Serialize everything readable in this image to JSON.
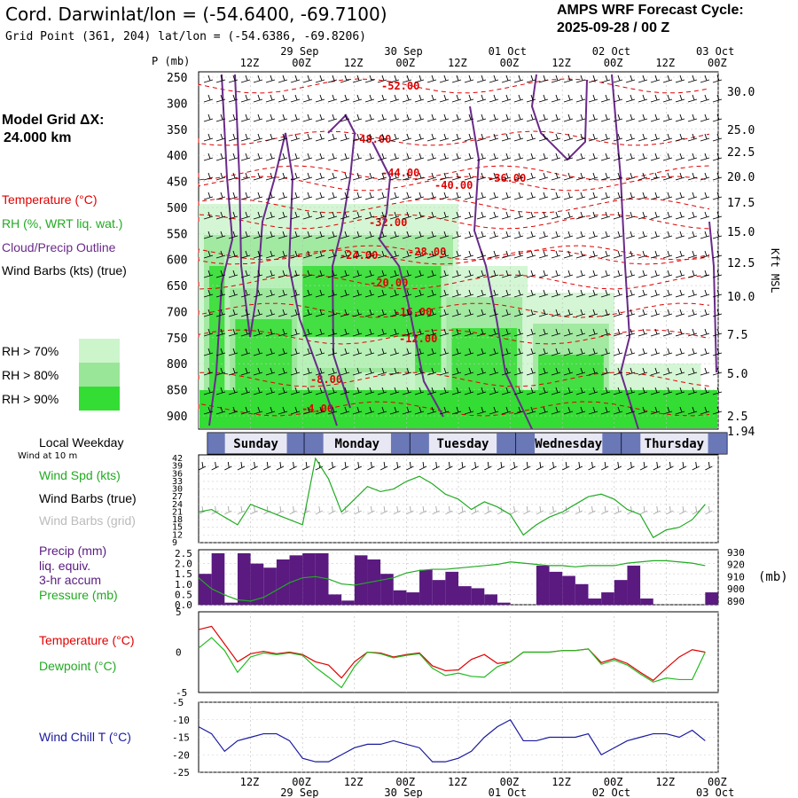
{
  "header": {
    "station": "Cord. Darwin:",
    "latlon_label": "lat/lon = (-54.6400, -69.7100)",
    "grid_point": "Grid Point (361, 204) lat/lon = (-54.6386, -69.8206)",
    "cycle_title": "AMPS WRF Forecast Cycle:",
    "cycle_value": "2025-09-28 / 00  Z"
  },
  "left_labels": {
    "model_grid": "Model Grid ΔX:",
    "model_grid_value": "24.000 km",
    "temperature": "Temperature (°C)",
    "rh": "RH (%, WRT liq. wat.)",
    "cloud": "Cloud/Precip Outline",
    "wind_barbs": "Wind Barbs (kts) (true)",
    "rh70": "RH > 70%",
    "rh80": "RH > 80%",
    "rh90": "RH > 90%",
    "local_weekday": "Local Weekday",
    "wind_10m": "Wind at 10 m",
    "wind_spd": "Wind Spd (kts)",
    "wind_barbs_true": "Wind Barbs (true)",
    "wind_barbs_grid": "Wind Barbs (grid)",
    "precip": "Precip (mm)",
    "precip2": "liq. equiv.",
    "precip3": "3-hr accum",
    "pressure": "Pressure (mb)",
    "temperature2": "Temperature (°C)",
    "dewpoint": "Dewpoint (°C)",
    "wind_chill": "Wind Chill T (°C)"
  },
  "axis_labels": {
    "p_mb": "P (mb)",
    "kft_msl": "Kft MSL",
    "mb": "(mb)"
  },
  "colors": {
    "rh70": "#ccf5cc",
    "rh80": "#99e699",
    "rh90": "#33dd33",
    "temperature": "#e00000",
    "dewpoint": "#22bb22",
    "cloud": "#6a2a8a",
    "precip": "#5a1a80",
    "pressure": "#22aa22",
    "wind_speed": "#22aa22",
    "wind_chill": "#1a1aa0",
    "weekday_bar": "#4a5ba8"
  },
  "chart_data": [
    {
      "type": "line",
      "title": "Time axis",
      "top_tick_labels": [
        "12Z",
        "00Z",
        "12Z",
        "00Z",
        "12Z",
        "00Z",
        "12Z",
        "00Z",
        "12Z",
        "00Z"
      ],
      "top_date_labels": [
        "29 Sep",
        "30 Sep",
        "01 Oct",
        "02 Oct",
        "03 Oct"
      ],
      "bottom_tick_labels": [
        "12Z",
        "00Z",
        "12Z",
        "00Z",
        "12Z",
        "00Z",
        "12Z",
        "00Z",
        "12Z",
        "00Z"
      ],
      "bottom_date_labels": [
        "29 Sep",
        "30 Sep",
        "01 Oct",
        "02 Oct",
        "03 Oct"
      ],
      "weekdays": [
        "Sunday",
        "Monday",
        "Tuesday",
        "Wednesday",
        "Thursday"
      ]
    },
    {
      "type": "heatmap",
      "title": "Cross-section: temperature, RH, cloud outline, wind barbs",
      "ylabel": "P (mb)",
      "pressure_ticks": [
        "250",
        "300",
        "350",
        "400",
        "450",
        "500",
        "550",
        "600",
        "650",
        "700",
        "750",
        "800",
        "850",
        "900"
      ],
      "height_ticks": [
        "30.0",
        "25.0",
        "22.5",
        "20.0",
        "17.5",
        "15.0",
        "12.5",
        "10.0",
        "7.5",
        "5.0",
        "2.5",
        "1.94"
      ],
      "temperature_labels": [
        "-52.00",
        "-48.00",
        "-44.00",
        "-40.00",
        "-36.00",
        "-32.00",
        "-28.00",
        "-24.00",
        "-20.00",
        "-16.00",
        "-12.00",
        "-8.00",
        "-4.00"
      ]
    },
    {
      "type": "line",
      "title": "Wind speed 10 m (kts)",
      "ylabel": "Wind Spd (kts)",
      "y_ticks": [
        "42",
        "39",
        "36",
        "33",
        "30",
        "27",
        "24",
        "21",
        "18",
        "15",
        "12",
        "9"
      ],
      "ylim": [
        9,
        42
      ],
      "x_hours": [
        0,
        3,
        6,
        9,
        12,
        15,
        18,
        21,
        24,
        27,
        30,
        33,
        36,
        39,
        42,
        45,
        48,
        51,
        54,
        57,
        60,
        63,
        66,
        69,
        72,
        75,
        78,
        81,
        84,
        87,
        90,
        93,
        96,
        99,
        102,
        105,
        108,
        111,
        114,
        117
      ],
      "values": [
        21,
        22,
        19,
        16,
        24,
        22,
        20,
        18,
        16,
        42,
        34,
        21,
        26,
        31,
        29,
        30,
        33,
        35,
        32,
        28,
        26,
        22,
        25,
        23,
        20,
        12,
        16,
        19,
        21,
        24,
        27,
        28,
        26,
        22,
        20,
        11,
        14,
        15,
        18,
        24
      ]
    },
    {
      "type": "bar",
      "title": "Precip (mm) 3-hr accum + Pressure (mb)",
      "ylabel": "Precip (mm)",
      "y_ticks": [
        "2.5",
        "2.0",
        "1.5",
        "1.0",
        "0.5",
        "0.0"
      ],
      "ylim": [
        0,
        2.5
      ],
      "pressure_ticks": [
        "930",
        "920",
        "910",
        "900",
        "890"
      ],
      "pressure_ylim": [
        887,
        932
      ],
      "x_hours": [
        0,
        3,
        6,
        9,
        12,
        15,
        18,
        21,
        24,
        27,
        30,
        33,
        36,
        39,
        42,
        45,
        48,
        51,
        54,
        57,
        60,
        63,
        66,
        69,
        72,
        75,
        78,
        81,
        84,
        87,
        90,
        93,
        96,
        99,
        102,
        105,
        108,
        111,
        114,
        117
      ],
      "precip": [
        1.5,
        2.5,
        0.1,
        2.5,
        2.0,
        1.8,
        2.2,
        2.4,
        2.5,
        2.5,
        0.5,
        0.2,
        2.4,
        2.2,
        1.5,
        0.7,
        0.6,
        1.7,
        1.2,
        1.6,
        0.9,
        0.8,
        0.5,
        0.1,
        0.0,
        0.0,
        1.9,
        1.6,
        1.4,
        1.0,
        0.3,
        0.6,
        1.2,
        1.9,
        0.3,
        0.0,
        0.0,
        0.0,
        0.0,
        0.6
      ],
      "pressure": [
        909,
        900,
        895,
        891,
        890,
        893,
        899,
        905,
        909,
        910,
        908,
        904,
        903,
        905,
        907,
        909,
        913,
        915,
        916,
        916,
        917,
        918,
        919,
        920,
        922,
        921,
        920,
        919,
        919,
        918,
        919,
        919,
        919,
        921,
        922,
        923,
        923,
        922,
        921,
        919
      ]
    },
    {
      "type": "line",
      "title": "Temperature and Dewpoint (°C)",
      "y_ticks": [
        "5",
        "0",
        "-5"
      ],
      "ylim": [
        -5,
        5
      ],
      "x_hours": [
        0,
        3,
        6,
        9,
        12,
        15,
        18,
        21,
        24,
        27,
        30,
        33,
        36,
        39,
        42,
        45,
        48,
        51,
        54,
        57,
        60,
        63,
        66,
        69,
        72,
        75,
        78,
        81,
        84,
        87,
        90,
        93,
        96,
        99,
        102,
        105,
        108,
        111,
        114,
        117
      ],
      "series": [
        {
          "name": "Temperature",
          "values": [
            2.8,
            3.2,
            1.0,
            -1.2,
            -0.2,
            0.1,
            -0.2,
            0.0,
            -0.3,
            -1.2,
            -1.6,
            -3.2,
            -1.2,
            0.0,
            -0.1,
            -0.6,
            -0.3,
            -0.1,
            -1.7,
            -2.3,
            -2.2,
            -0.9,
            -0.3,
            -1.4,
            -1.2,
            0.0,
            0.0,
            0.0,
            0.2,
            0.2,
            0.4,
            -1.3,
            -0.8,
            -1.4,
            -2.5,
            -3.5,
            -2.0,
            -0.6,
            0.3,
            0.0
          ]
        },
        {
          "name": "Dewpoint",
          "values": [
            0.5,
            1.8,
            0.2,
            -2.5,
            -0.6,
            -0.1,
            -0.3,
            -0.1,
            -0.4,
            -1.9,
            -3.1,
            -4.4,
            -1.8,
            0.0,
            -0.2,
            -0.7,
            -0.4,
            -0.2,
            -2.0,
            -2.9,
            -2.6,
            -3.0,
            -3.1,
            -1.8,
            -1.2,
            0.0,
            0.0,
            0.0,
            0.2,
            0.2,
            0.4,
            -1.5,
            -1.0,
            -1.6,
            -2.7,
            -3.7,
            -3.2,
            -3.4,
            -3.4,
            0.0
          ]
        }
      ]
    },
    {
      "type": "line",
      "title": "Wind Chill T (°C)",
      "y_ticks": [
        "-5",
        "-10",
        "-15",
        "-20",
        "-25"
      ],
      "ylim": [
        -25,
        -5
      ],
      "x_hours": [
        0,
        3,
        6,
        9,
        12,
        15,
        18,
        21,
        24,
        27,
        30,
        33,
        36,
        39,
        42,
        45,
        48,
        51,
        54,
        57,
        60,
        63,
        66,
        69,
        72,
        75,
        78,
        81,
        84,
        87,
        90,
        93,
        96,
        99,
        102,
        105,
        108,
        111,
        114,
        117
      ],
      "values": [
        -12,
        -14,
        -19,
        -16,
        -15,
        -14,
        -14,
        -16,
        -21,
        -22,
        -22,
        -20,
        -18,
        -17,
        -17,
        -16,
        -17,
        -18,
        -22,
        -22,
        -21,
        -19,
        -15,
        -12,
        -10,
        -16,
        -16,
        -15,
        -15,
        -15,
        -14,
        -20,
        -18,
        -16,
        -15,
        -14,
        -14,
        -15,
        -13,
        -16
      ]
    }
  ]
}
